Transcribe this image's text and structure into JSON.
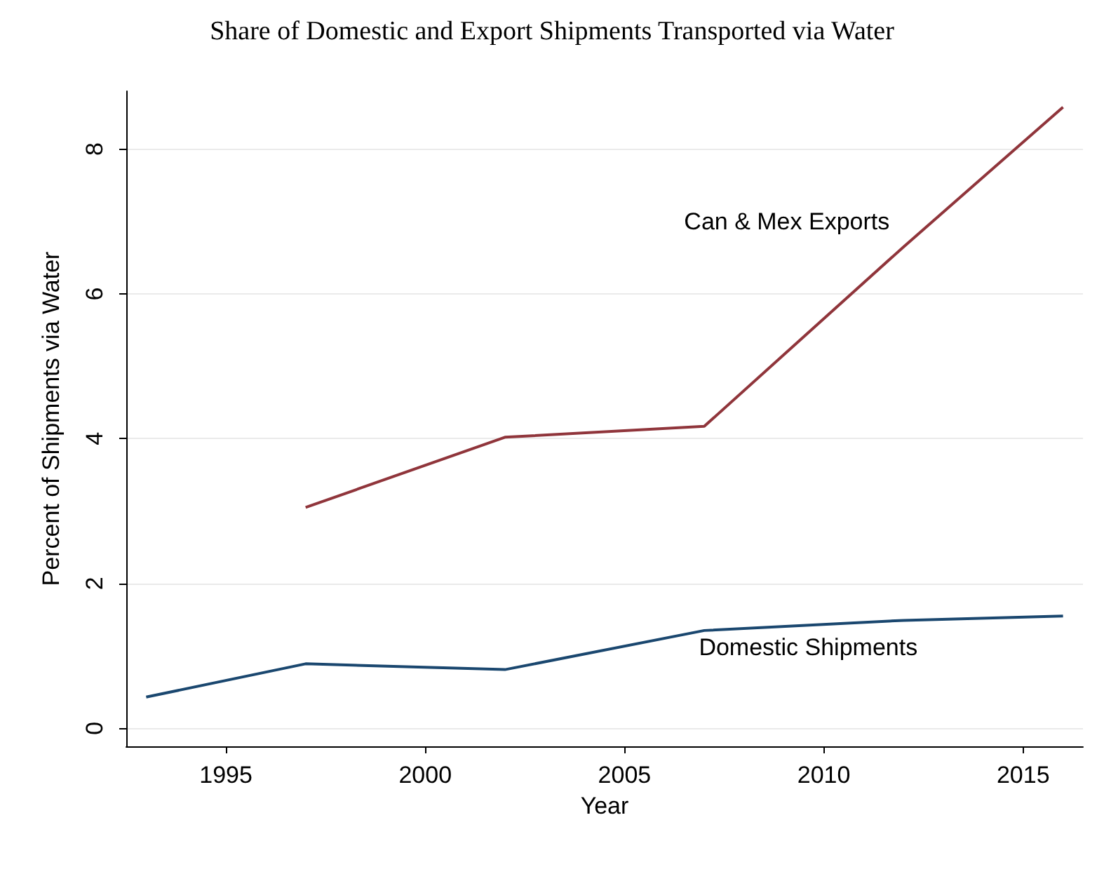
{
  "chart_data": {
    "type": "line",
    "title": "Share of Domestic and Export Shipments Transported via Water",
    "xlabel": "Year",
    "ylabel": "Percent of Shipments via Water",
    "series": [
      {
        "name": "Can & Mex Exports",
        "color": "#90353b",
        "x": [
          1997,
          2002,
          2007,
          2012,
          2016
        ],
        "values": [
          3.05,
          4.02,
          4.17,
          6.65,
          8.58
        ]
      },
      {
        "name": "Domestic Shipments",
        "color": "#1a476f",
        "x": [
          1993,
          1997,
          2002,
          2007,
          2012,
          2016
        ],
        "values": [
          0.43,
          0.89,
          0.81,
          1.35,
          1.49,
          1.55
        ]
      }
    ],
    "xlim": [
      1992.5,
      2016.5
    ],
    "xticks": [
      1995,
      2000,
      2005,
      2010,
      2015
    ],
    "ylim": [
      -0.25,
      8.8
    ],
    "yticks": [
      0,
      2,
      4,
      6,
      8
    ],
    "grid": "y",
    "legend": false,
    "marker": "none",
    "line_style": "solid"
  }
}
